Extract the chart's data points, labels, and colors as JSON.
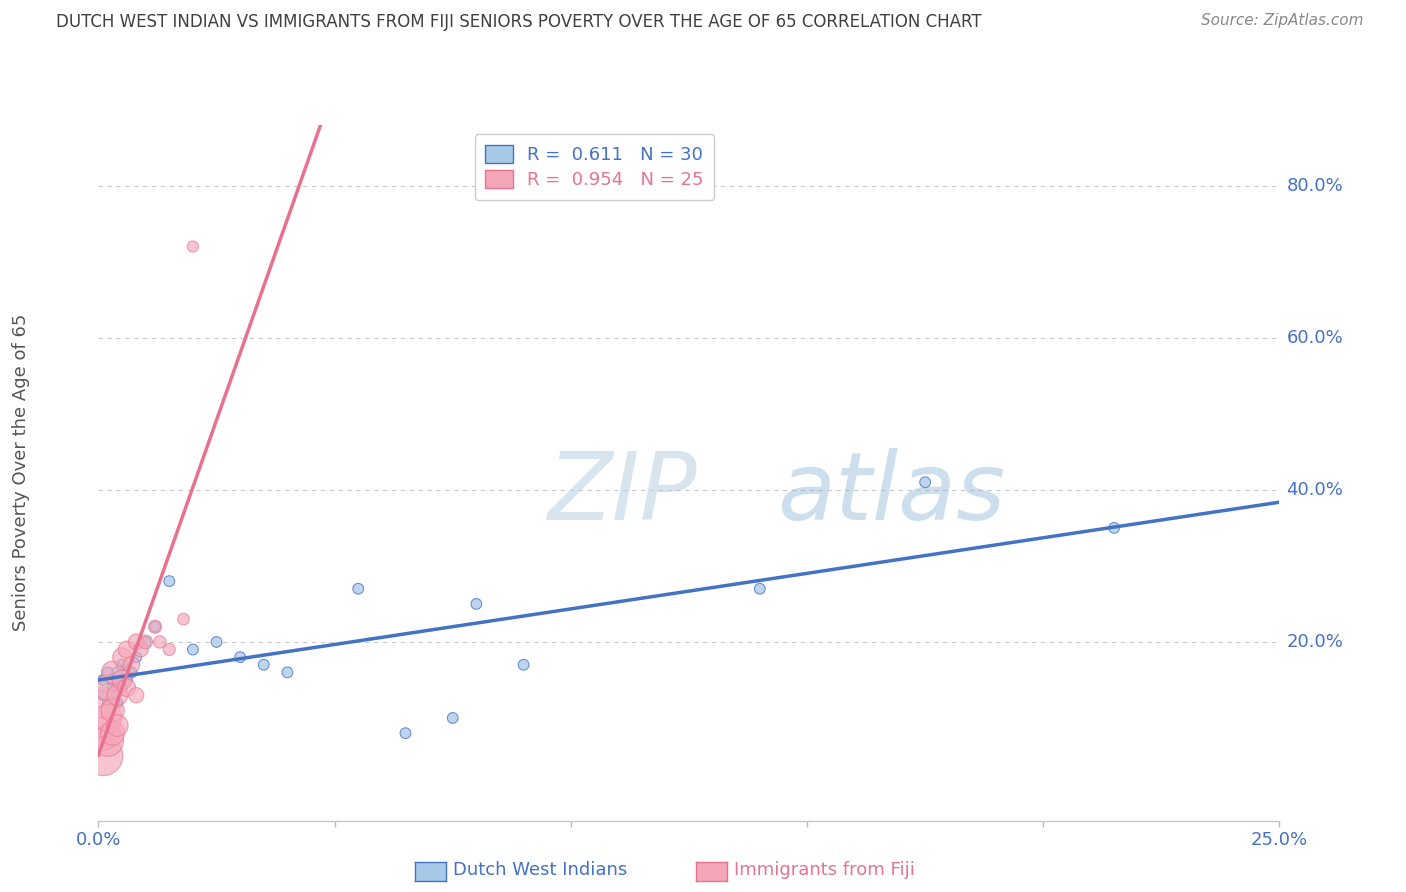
{
  "title": "DUTCH WEST INDIAN VS IMMIGRANTS FROM FIJI SENIORS POVERTY OVER THE AGE OF 65 CORRELATION CHART",
  "source": "Source: ZipAtlas.com",
  "ylabel": "Seniors Poverty Over the Age of 65",
  "xlim": [
    0.0,
    0.25
  ],
  "ylim": [
    -0.035,
    0.88
  ],
  "series1_name": "Dutch West Indians",
  "series1_color": "#a8c8e8",
  "series1_R": "0.611",
  "series1_N": "30",
  "series1_line_color": "#4472c4",
  "series2_name": "Immigrants from Fiji",
  "series2_color": "#f4a7b9",
  "series2_R": "0.954",
  "series2_N": "25",
  "series2_line_color": "#e8728e",
  "watermark_ZIP": "ZIP",
  "watermark_atlas": "atlas",
  "background_color": "#ffffff",
  "grid_color": "#c8c8c8",
  "title_color": "#404040",
  "axis_label_color": "#4472c4",
  "dutch_x": [
    0.001,
    0.001,
    0.002,
    0.002,
    0.003,
    0.003,
    0.003,
    0.004,
    0.004,
    0.005,
    0.005,
    0.006,
    0.007,
    0.008,
    0.01,
    0.012,
    0.015,
    0.02,
    0.025,
    0.03,
    0.035,
    0.04,
    0.055,
    0.065,
    0.075,
    0.08,
    0.09,
    0.14,
    0.175,
    0.215
  ],
  "dutch_y": [
    0.13,
    0.15,
    0.12,
    0.16,
    0.14,
    0.13,
    0.15,
    0.16,
    0.12,
    0.17,
    0.14,
    0.15,
    0.16,
    0.18,
    0.2,
    0.22,
    0.28,
    0.19,
    0.2,
    0.18,
    0.17,
    0.16,
    0.27,
    0.08,
    0.1,
    0.25,
    0.17,
    0.27,
    0.41,
    0.35
  ],
  "dutch_sizes": [
    60,
    60,
    60,
    60,
    60,
    60,
    60,
    60,
    60,
    60,
    60,
    60,
    60,
    60,
    60,
    60,
    60,
    60,
    60,
    60,
    60,
    60,
    60,
    60,
    60,
    60,
    60,
    60,
    60,
    60
  ],
  "fiji_x": [
    0.001,
    0.001,
    0.001,
    0.002,
    0.002,
    0.002,
    0.003,
    0.003,
    0.003,
    0.004,
    0.004,
    0.005,
    0.005,
    0.006,
    0.006,
    0.007,
    0.008,
    0.008,
    0.009,
    0.01,
    0.012,
    0.013,
    0.015,
    0.018,
    0.02
  ],
  "fiji_y": [
    0.05,
    0.08,
    0.12,
    0.07,
    0.1,
    0.14,
    0.08,
    0.11,
    0.16,
    0.09,
    0.13,
    0.15,
    0.18,
    0.14,
    0.19,
    0.17,
    0.2,
    0.13,
    0.19,
    0.2,
    0.22,
    0.2,
    0.19,
    0.23,
    0.72
  ],
  "fiji_sizes": [
    800,
    600,
    500,
    500,
    400,
    350,
    300,
    280,
    260,
    240,
    220,
    200,
    180,
    160,
    150,
    140,
    130,
    120,
    110,
    100,
    90,
    80,
    75,
    70,
    65
  ]
}
